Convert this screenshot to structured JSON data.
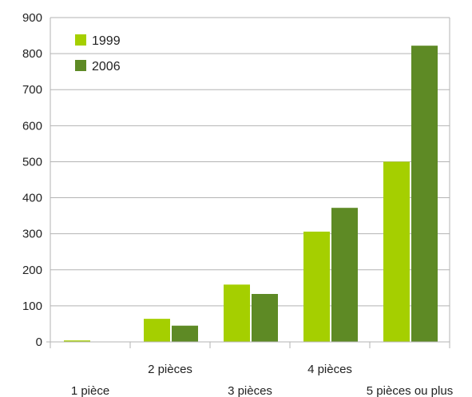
{
  "chart_data": {
    "type": "bar",
    "title": "",
    "xlabel": "",
    "ylabel": "",
    "categories": [
      "1 pièce",
      "2 pièces",
      "3 pièces",
      "4 pièces",
      "5 pièces ou plus"
    ],
    "series": [
      {
        "name": "1999",
        "color": "#a5cf00",
        "values": [
          4,
          64,
          159,
          306,
          500
        ]
      },
      {
        "name": "2006",
        "color": "#5e8a25",
        "values": [
          0,
          45,
          133,
          372,
          822
        ]
      }
    ],
    "ylim": [
      0,
      900
    ],
    "yticks": [
      "0",
      "100",
      "200",
      "300",
      "400",
      "500",
      "600",
      "700",
      "800",
      "900"
    ],
    "grid": true,
    "legend_position": "top-left",
    "legend": [
      "1999",
      "2006"
    ]
  }
}
